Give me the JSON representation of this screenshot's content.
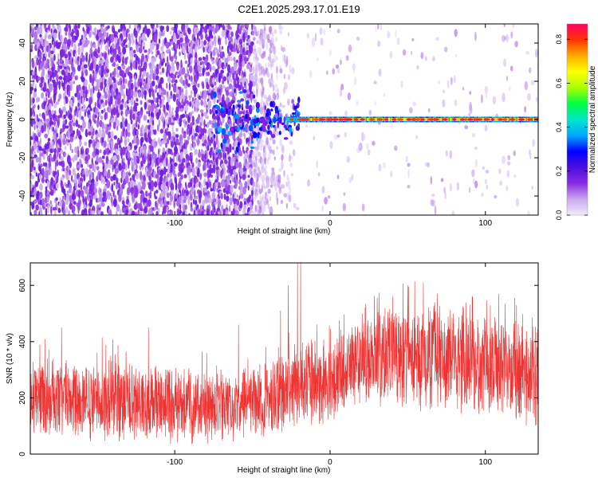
{
  "title": "C2E1.2025.293.17.01.E19",
  "chart_data": [
    {
      "type": "heatmap",
      "title": "C2E1.2025.293.17.01.E19",
      "xlabel": "Height of straight line (km)",
      "ylabel": "Frequency (Hz)",
      "xlim": [
        -193,
        134
      ],
      "ylim": [
        -50,
        50
      ],
      "xticks": [
        -100,
        0,
        100
      ],
      "yticks": [
        -40,
        -20,
        0,
        20,
        40
      ],
      "xtick_labels": [
        "-100",
        "0",
        "100"
      ],
      "ytick_labels": [
        "-40",
        "-20",
        "0",
        "20",
        "40"
      ],
      "grid": false,
      "colorbar": {
        "label": "Normalized spectral amplitude",
        "range": [
          0,
          0.87
        ],
        "ticks": [
          0,
          0.2,
          0.4,
          0.6,
          0.8
        ],
        "tick_labels": [
          "0.0",
          "0.2",
          "0.4",
          "0.6",
          "0.8"
        ],
        "colormap": [
          "#f2ecf9",
          "#c9a8ee",
          "#8a2be2",
          "#4b0fe0",
          "#0000ff",
          "#00aaff",
          "#00e5cc",
          "#00ff40",
          "#aaff00",
          "#ffff00",
          "#ffaa00",
          "#ff3300",
          "#ff0066"
        ]
      },
      "regions": [
        {
          "x_range": [
            -193,
            -50
          ],
          "description_value": "broadband noise, amplitude 0.05-0.2"
        },
        {
          "x_range": [
            -75,
            -25
          ],
          "description_value": "transition, amplitude 0.1-0.4"
        },
        {
          "x_range": [
            -25,
            134
          ],
          "description_value": "narrow line at 0 Hz, amplitude 0.5-0.87"
        }
      ],
      "line_center_hz": 0
    },
    {
      "type": "line",
      "xlabel": "Height of straight line (km)",
      "ylabel": "SNR (10 * v/v)",
      "xlim": [
        -193,
        134
      ],
      "ylim": [
        0,
        680
      ],
      "xticks": [
        -100,
        0,
        100
      ],
      "yticks": [
        0,
        200,
        400,
        600
      ],
      "xtick_labels": [
        "-100",
        "0",
        "100"
      ],
      "ytick_labels": [
        "0",
        "200",
        "400",
        "600"
      ],
      "grid": false,
      "color": "#ee3333",
      "series_summary": [
        {
          "x": -190,
          "low": 40,
          "high": 350
        },
        {
          "x": -150,
          "low": 40,
          "high": 360
        },
        {
          "x": -100,
          "low": 30,
          "high": 320
        },
        {
          "x": -60,
          "low": 40,
          "high": 300
        },
        {
          "x": -30,
          "low": 60,
          "high": 380
        },
        {
          "x": -20,
          "low": 80,
          "high": 420
        },
        {
          "x": 0,
          "low": 80,
          "high": 420
        },
        {
          "x": 20,
          "low": 180,
          "high": 520
        },
        {
          "x": 50,
          "low": 150,
          "high": 560
        },
        {
          "x": 100,
          "low": 120,
          "high": 520
        },
        {
          "x": 134,
          "low": 80,
          "high": 480
        }
      ],
      "spikes": [
        {
          "x": -173,
          "y": 450
        },
        {
          "x": -117,
          "y": 450
        },
        {
          "x": -59,
          "y": 460
        },
        {
          "x": -32,
          "y": 510
        },
        {
          "x": -27,
          "y": 600
        },
        {
          "x": -21,
          "y": 680
        },
        {
          "x": -19,
          "y": 680
        },
        {
          "x": 50,
          "y": 600
        },
        {
          "x": 60,
          "y": 610
        }
      ]
    }
  ]
}
